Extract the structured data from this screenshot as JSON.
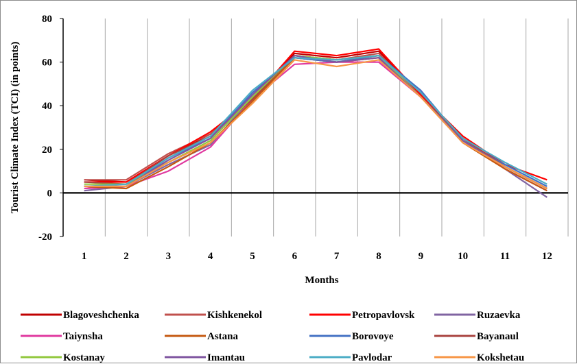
{
  "chart_data": {
    "type": "line",
    "title": "",
    "xlabel": "Months",
    "ylabel": "Tourist Climate Index (TCI) (in points)",
    "x": [
      1,
      2,
      3,
      4,
      5,
      6,
      7,
      8,
      9,
      10,
      11,
      12
    ],
    "ylim": [
      -20,
      80
    ],
    "yticks": [
      -20,
      0,
      20,
      40,
      60,
      80
    ],
    "grid": "vertical",
    "legend_position": "bottom",
    "series": [
      {
        "name": "Blagoveshchenka",
        "color": "#c00000",
        "values": [
          6,
          5,
          17,
          27,
          43,
          64,
          62,
          65,
          45,
          25,
          12,
          2
        ]
      },
      {
        "name": "Kishkenekol",
        "color": "#c0504d",
        "values": [
          6,
          6,
          18,
          27,
          42,
          63,
          61,
          64,
          45,
          25,
          12,
          2
        ]
      },
      {
        "name": "Petropavlovsk",
        "color": "#ff0000",
        "values": [
          5,
          5,
          17,
          28,
          43,
          65,
          63,
          66,
          45,
          26,
          13,
          6
        ]
      },
      {
        "name": "Ruzaevka",
        "color": "#8064a2",
        "values": [
          1,
          3,
          13,
          22,
          44,
          62,
          60,
          62,
          44,
          24,
          11,
          -2
        ]
      },
      {
        "name": "Taiynsha",
        "color": "#e0399f",
        "values": [
          2,
          3,
          10,
          21,
          43,
          59,
          60,
          60,
          44,
          24,
          11,
          1
        ]
      },
      {
        "name": "Astana",
        "color": "#c55a11",
        "values": [
          3,
          2,
          12,
          23,
          42,
          62,
          60,
          62,
          44,
          23,
          11,
          1
        ]
      },
      {
        "name": "Borovoye",
        "color": "#4472c4",
        "values": [
          3,
          3,
          16,
          25,
          46,
          62,
          60,
          63,
          47,
          24,
          13,
          3
        ]
      },
      {
        "name": "Bayanaul",
        "color": "#a9433f",
        "values": [
          5,
          4,
          17,
          26,
          43,
          63,
          61,
          63,
          44,
          25,
          12,
          2
        ]
      },
      {
        "name": "Kostanay",
        "color": "#92c83e",
        "values": [
          4,
          4,
          14,
          24,
          44,
          63,
          61,
          63,
          44,
          24,
          12,
          2
        ]
      },
      {
        "name": "Imantau",
        "color": "#7f55a0",
        "values": [
          3,
          3,
          15,
          25,
          45,
          63,
          60,
          62,
          44,
          24,
          12,
          2
        ]
      },
      {
        "name": "Pavlodar",
        "color": "#4bacc6",
        "values": [
          3,
          4,
          16,
          26,
          47,
          62,
          61,
          63,
          46,
          25,
          14,
          4
        ]
      },
      {
        "name": "Kokshetau",
        "color": "#f79646",
        "values": [
          3,
          3,
          14,
          23,
          41,
          61,
          58,
          61,
          44,
          23,
          12,
          2
        ]
      }
    ]
  }
}
